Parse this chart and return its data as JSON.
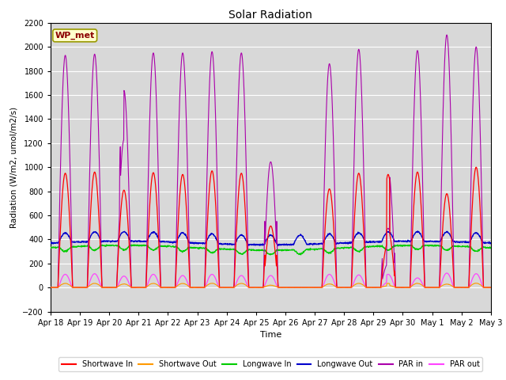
{
  "title": "Solar Radiation",
  "xlabel": "Time",
  "ylabel": "Radiation (W/m2, umol/m2/s)",
  "ylim": [
    -200,
    2200
  ],
  "yticks": [
    -200,
    0,
    200,
    400,
    600,
    800,
    1000,
    1200,
    1400,
    1600,
    1800,
    2000,
    2200
  ],
  "station_label": "WP_met",
  "num_days": 15,
  "colors": {
    "shortwave_in": "#ff0000",
    "shortwave_out": "#ff9900",
    "longwave_in": "#00cc00",
    "longwave_out": "#0000cc",
    "par_in": "#aa00aa",
    "par_out": "#ff44ff"
  },
  "plot_bg": "#d8d8d8",
  "legend_labels": [
    "Shortwave In",
    "Shortwave Out",
    "Longwave In",
    "Longwave Out",
    "PAR in",
    "PAR out"
  ],
  "xtick_labels": [
    "Apr 18",
    "Apr 19",
    "Apr 20",
    "Apr 21",
    "Apr 22",
    "Apr 23",
    "Apr 24",
    "Apr 25",
    "Apr 26",
    "Apr 27",
    "Apr 28",
    "Apr 29",
    "Apr 30",
    "May 1",
    "May 2",
    "May 3"
  ]
}
